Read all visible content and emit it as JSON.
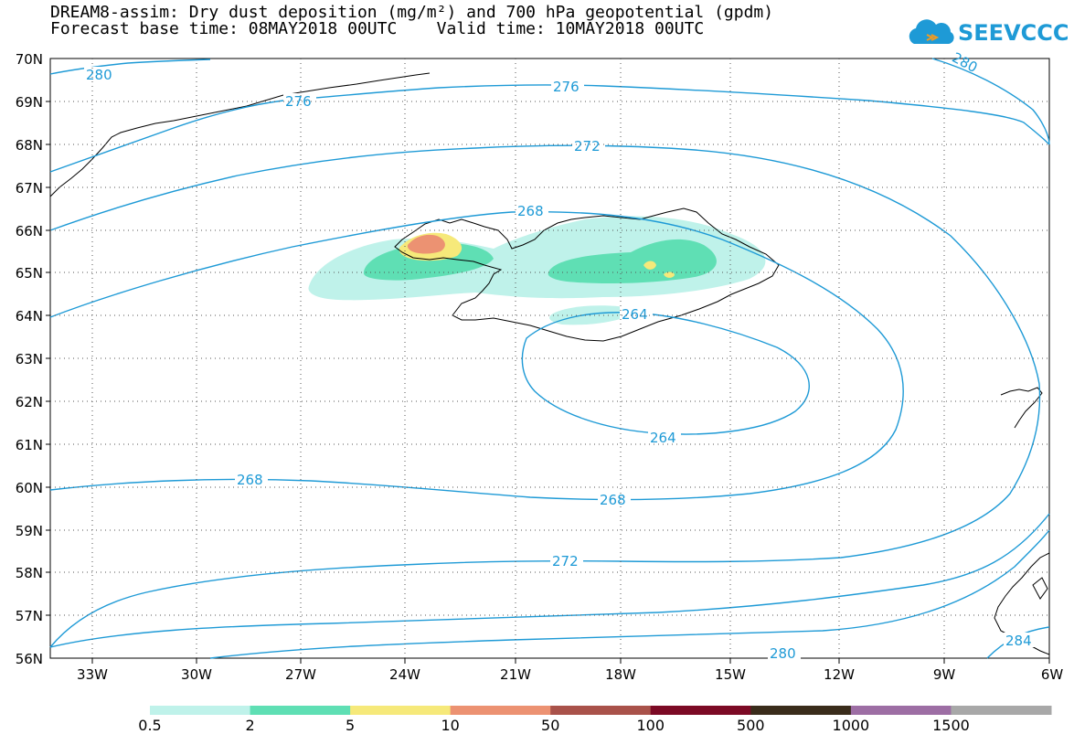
{
  "title": {
    "line1": "DREAM8-assim: Dry dust deposition (mg/m²) and 700 hPa geopotential (gpdm)",
    "line2": "Forecast base time: 08MAY2018 00UTC    Valid time: 10MAY2018 00UTC"
  },
  "logo": {
    "text": "SEEVCCC",
    "color": "#1e9ad6"
  },
  "map": {
    "lat_labels": [
      "70N",
      "69N",
      "68N",
      "67N",
      "66N",
      "65N",
      "64N",
      "63N",
      "62N",
      "61N",
      "60N",
      "59N",
      "58N",
      "57N",
      "56N"
    ],
    "lon_labels": [
      "33W",
      "30W",
      "27W",
      "24W",
      "21W",
      "18W",
      "15W",
      "12W",
      "9W",
      "6W"
    ],
    "contour_color": "#1e9ad6",
    "contour_labels": [
      "280",
      "276",
      "276",
      "272",
      "268",
      "264",
      "264",
      "268",
      "268",
      "272",
      "280",
      "284",
      "280"
    ]
  },
  "colorbar": {
    "colors": [
      "#bff2ea",
      "#5fdfb4",
      "#f6e97a",
      "#ec9272",
      "#a9524a",
      "#7c0a25",
      "#3a2c1b",
      "#9d6ea4",
      "#a8a8a8"
    ],
    "labels": [
      "0.5",
      "2",
      "5",
      "10",
      "50",
      "100",
      "500",
      "1000",
      "1500"
    ]
  }
}
